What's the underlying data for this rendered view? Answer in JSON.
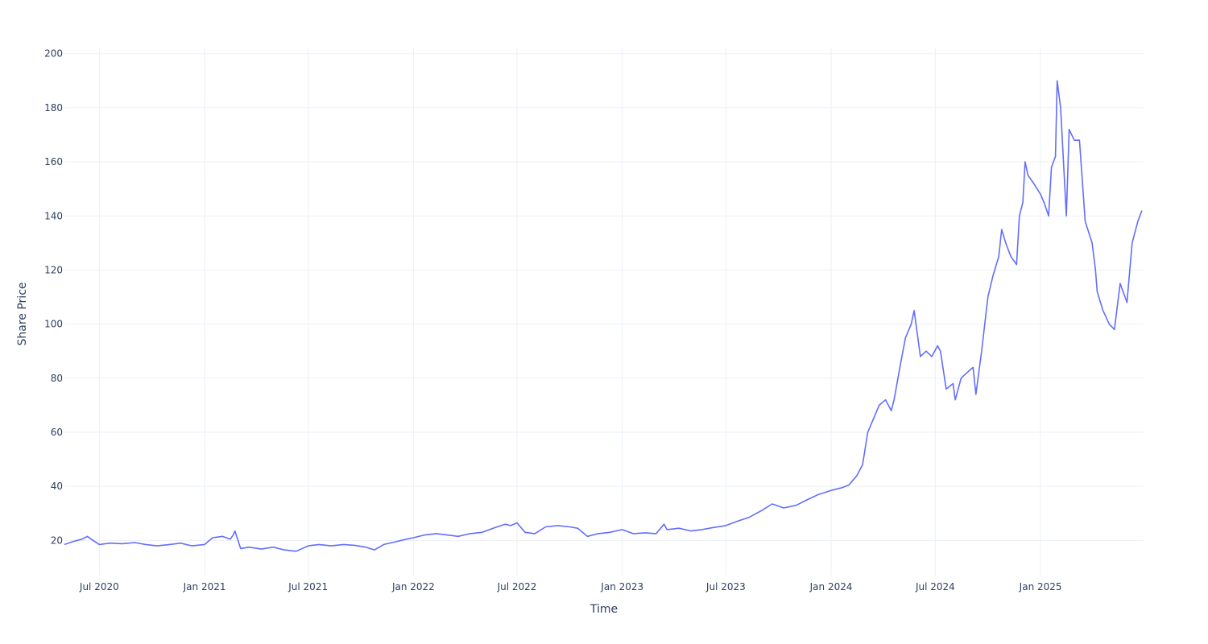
{
  "chart_data": {
    "type": "line",
    "xlabel": "Time",
    "ylabel": "Share Price",
    "xlim": [
      "2020-05-01",
      "2025-06-30"
    ],
    "ylim": [
      7,
      202
    ],
    "grid": true,
    "legend": "none",
    "line_color": "#636efa",
    "x_ticks": [
      {
        "date": "2020-07-01",
        "label": "Jul 2020"
      },
      {
        "date": "2021-01-01",
        "label": "Jan 2021"
      },
      {
        "date": "2021-07-01",
        "label": "Jul 2021"
      },
      {
        "date": "2022-01-01",
        "label": "Jan 2022"
      },
      {
        "date": "2022-07-01",
        "label": "Jul 2022"
      },
      {
        "date": "2023-01-01",
        "label": "Jan 2023"
      },
      {
        "date": "2023-07-01",
        "label": "Jul 2023"
      },
      {
        "date": "2024-01-01",
        "label": "Jan 2024"
      },
      {
        "date": "2024-07-01",
        "label": "Jul 2024"
      },
      {
        "date": "2025-01-01",
        "label": "Jan 2025"
      }
    ],
    "y_ticks": [
      20,
      40,
      60,
      80,
      100,
      120,
      140,
      160,
      180,
      200
    ],
    "series": [
      {
        "x": [
          "2020-05-01",
          "2020-05-15",
          "2020-06-01",
          "2020-06-10",
          "2020-06-20",
          "2020-07-01",
          "2020-07-20",
          "2020-08-10",
          "2020-09-01",
          "2020-09-20",
          "2020-10-10",
          "2020-11-01",
          "2020-11-20",
          "2020-12-10",
          "2021-01-01",
          "2021-01-15",
          "2021-02-01",
          "2021-02-15",
          "2021-02-20",
          "2021-02-23",
          "2021-03-05",
          "2021-03-20",
          "2021-04-10",
          "2021-05-01",
          "2021-05-20",
          "2021-06-10",
          "2021-07-01",
          "2021-07-20",
          "2021-08-10",
          "2021-09-01",
          "2021-09-20",
          "2021-10-10",
          "2021-10-25",
          "2021-11-10",
          "2021-12-01",
          "2021-12-20",
          "2022-01-01",
          "2022-01-20",
          "2022-02-10",
          "2022-03-01",
          "2022-03-20",
          "2022-04-10",
          "2022-05-01",
          "2022-05-20",
          "2022-06-10",
          "2022-06-20",
          "2022-07-01",
          "2022-07-15",
          "2022-08-01",
          "2022-08-20",
          "2022-09-10",
          "2022-10-01",
          "2022-10-15",
          "2022-11-01",
          "2022-11-20",
          "2022-12-10",
          "2023-01-01",
          "2023-01-20",
          "2023-02-10",
          "2023-03-01",
          "2023-03-15",
          "2023-03-20",
          "2023-04-10",
          "2023-05-01",
          "2023-05-20",
          "2023-06-10",
          "2023-07-01",
          "2023-07-20",
          "2023-08-10",
          "2023-09-01",
          "2023-09-20",
          "2023-10-10",
          "2023-11-01",
          "2023-11-20",
          "2023-12-10",
          "2024-01-01",
          "2024-01-20",
          "2024-02-01",
          "2024-02-15",
          "2024-02-25",
          "2024-03-05",
          "2024-03-15",
          "2024-03-25",
          "2024-04-05",
          "2024-04-15",
          "2024-04-20",
          "2024-05-01",
          "2024-05-10",
          "2024-05-20",
          "2024-05-25",
          "2024-06-05",
          "2024-06-15",
          "2024-06-25",
          "2024-07-05",
          "2024-07-10",
          "2024-07-20",
          "2024-08-01",
          "2024-08-05",
          "2024-08-15",
          "2024-08-25",
          "2024-09-05",
          "2024-09-10",
          "2024-09-20",
          "2024-10-01",
          "2024-10-10",
          "2024-10-20",
          "2024-10-25",
          "2024-11-01",
          "2024-11-10",
          "2024-11-20",
          "2024-11-25",
          "2024-12-01",
          "2024-12-05",
          "2024-12-10",
          "2024-12-20",
          "2025-01-01",
          "2025-01-07",
          "2025-01-15",
          "2025-01-20",
          "2025-01-27",
          "2025-01-30",
          "2025-02-05",
          "2025-02-15",
          "2025-02-20",
          "2025-03-01",
          "2025-03-10",
          "2025-03-20",
          "2025-04-01",
          "2025-04-04",
          "2025-04-07",
          "2025-04-10",
          "2025-04-20",
          "2025-05-01",
          "2025-05-10",
          "2025-05-20",
          "2025-06-01",
          "2025-06-10",
          "2025-06-20",
          "2025-06-27"
        ],
        "y": [
          18.5,
          19.5,
          20.5,
          21.5,
          20,
          18.5,
          19,
          18.8,
          19.2,
          18.5,
          18,
          18.5,
          19,
          18,
          18.5,
          21,
          21.5,
          20.5,
          22,
          23.5,
          17,
          17.5,
          16.8,
          17.5,
          16.5,
          16,
          18,
          18.5,
          18,
          18.5,
          18.2,
          17.5,
          16.5,
          18.5,
          19.5,
          20.5,
          21,
          22,
          22.5,
          22,
          21.5,
          22.5,
          23,
          24.5,
          26,
          25.5,
          26.5,
          23,
          22.5,
          25,
          25.5,
          25,
          24.5,
          21.5,
          22.5,
          23,
          24,
          22.5,
          22.8,
          22.5,
          26,
          24,
          24.5,
          23.5,
          24,
          24.8,
          25.5,
          27,
          28.5,
          31,
          33.5,
          32,
          33,
          35,
          37,
          38.5,
          39.5,
          40.5,
          44,
          48,
          60,
          65,
          70,
          72,
          68,
          72,
          85,
          95,
          100,
          105,
          88,
          90,
          88,
          92,
          90,
          76,
          78,
          72,
          80,
          82,
          84,
          74,
          90,
          110,
          118,
          125,
          135,
          130,
          125,
          122,
          140,
          145,
          160,
          155,
          152,
          148,
          145,
          140,
          158,
          162,
          190,
          180,
          140,
          172,
          168,
          168,
          138,
          130,
          125,
          120,
          112,
          105,
          100,
          98,
          115,
          108,
          130,
          138,
          142
        ]
      }
    ]
  }
}
